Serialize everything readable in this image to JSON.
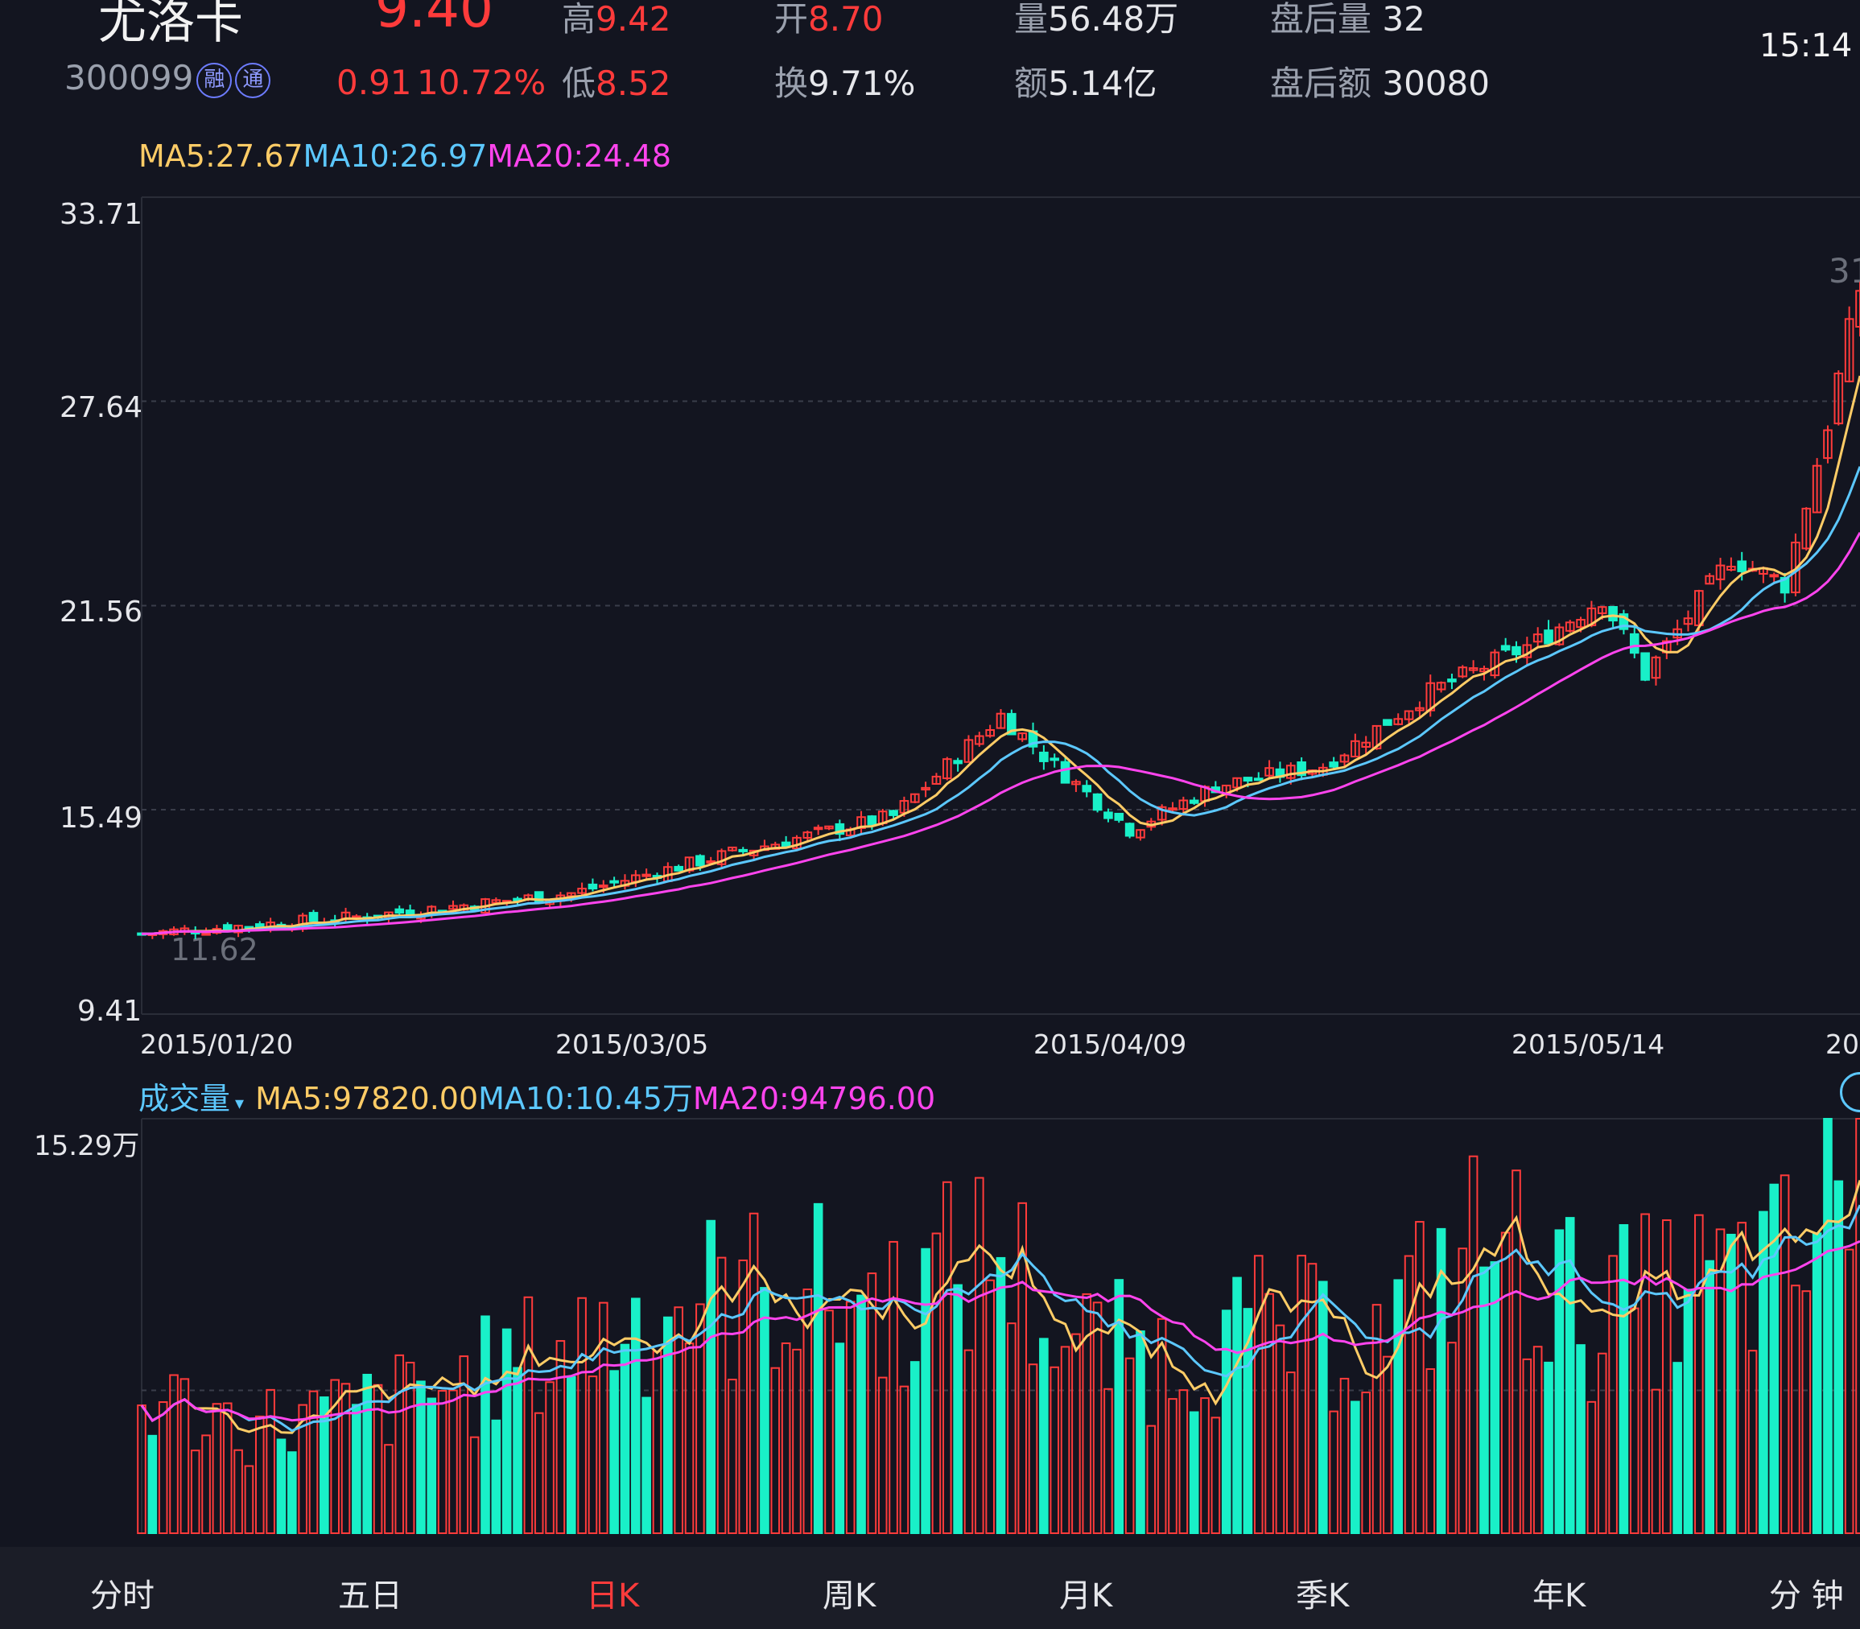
{
  "header": {
    "stock_name": "尤洛卡",
    "stock_code": "300099",
    "badge_rong": "融",
    "badge_tong": "通",
    "price": "9.40",
    "change": "0.91",
    "change_pct": "10.72%",
    "high_label": "高",
    "high_value": "9.42",
    "low_label": "低",
    "low_value": "8.52",
    "open_label": "开",
    "open_value": "8.70",
    "turnover_label": "换",
    "turnover_value": "9.71%",
    "volume_label": "量",
    "volume_value": "56.48万",
    "amount_label": "额",
    "amount_value": "5.14亿",
    "after_volume_label": "盘后量",
    "after_volume_value": "32",
    "after_amount_label": "盘后额",
    "after_amount_value": "30080",
    "time": "15:14"
  },
  "price_ma": {
    "ma5": "MA5:27.67",
    "ma10": "MA10:26.97",
    "ma20": "MA20:24.48"
  },
  "volume_ma": {
    "title": "成交量",
    "ma5": "MA5:97820.00",
    "ma10": "MA10:10.45万",
    "ma20": "MA20:94796.00"
  },
  "tabs": [
    {
      "label": "分时"
    },
    {
      "label": "五日"
    },
    {
      "label": "日K"
    },
    {
      "label": "周K"
    },
    {
      "label": "月K"
    },
    {
      "label": "季K"
    },
    {
      "label": "年K"
    },
    {
      "label": "分 钟"
    }
  ],
  "active_tab": "日K",
  "colors": {
    "up": "#ff3b3b",
    "down": "#19f0c8",
    "ma5": "#ffcc66",
    "ma10": "#5cc8ff",
    "ma20": "#ff44ee",
    "background": "#131520"
  },
  "chart_data": [
    {
      "type": "candlestick",
      "y_ticks": [
        "33.71",
        "27.64",
        "21.56",
        "15.49",
        "9.41"
      ],
      "ylim": [
        9.41,
        33.71
      ],
      "x_labels": [
        "2015/01/20",
        "2015/03/05",
        "2015/04/09",
        "2015/05/14",
        "20"
      ],
      "annotations": {
        "min_label": "11.62",
        "max_label": "31"
      },
      "anchor_closes": [
        {
          "i": 0,
          "v": 11.8
        },
        {
          "i": 20,
          "v": 12.3
        },
        {
          "i": 40,
          "v": 13.0
        },
        {
          "i": 55,
          "v": 14.2
        },
        {
          "i": 70,
          "v": 15.3
        },
        {
          "i": 80,
          "v": 18.3
        },
        {
          "i": 85,
          "v": 16.8
        },
        {
          "i": 92,
          "v": 14.9
        },
        {
          "i": 100,
          "v": 16.2
        },
        {
          "i": 110,
          "v": 16.8
        },
        {
          "i": 120,
          "v": 19.0
        },
        {
          "i": 130,
          "v": 20.5
        },
        {
          "i": 136,
          "v": 21.8
        },
        {
          "i": 140,
          "v": 19.5
        },
        {
          "i": 148,
          "v": 23.0
        },
        {
          "i": 153,
          "v": 22.2
        },
        {
          "i": 157,
          "v": 27.0
        },
        {
          "i": 160,
          "v": 31.0
        }
      ]
    },
    {
      "type": "bar",
      "name": "成交量",
      "y_ticks": [
        "15.29万"
      ],
      "ylim": [
        0,
        152900
      ],
      "anchor_volumes": [
        {
          "i": 0,
          "v": 50000
        },
        {
          "i": 10,
          "v": 40000
        },
        {
          "i": 20,
          "v": 45000
        },
        {
          "i": 30,
          "v": 55000
        },
        {
          "i": 40,
          "v": 70000
        },
        {
          "i": 50,
          "v": 85000
        },
        {
          "i": 60,
          "v": 90000
        },
        {
          "i": 70,
          "v": 85000
        },
        {
          "i": 80,
          "v": 105000
        },
        {
          "i": 86,
          "v": 70000
        },
        {
          "i": 95,
          "v": 65000
        },
        {
          "i": 105,
          "v": 75000
        },
        {
          "i": 115,
          "v": 70000
        },
        {
          "i": 125,
          "v": 110000
        },
        {
          "i": 135,
          "v": 80000
        },
        {
          "i": 145,
          "v": 90000
        },
        {
          "i": 155,
          "v": 100000
        },
        {
          "i": 160,
          "v": 152900
        }
      ]
    }
  ]
}
